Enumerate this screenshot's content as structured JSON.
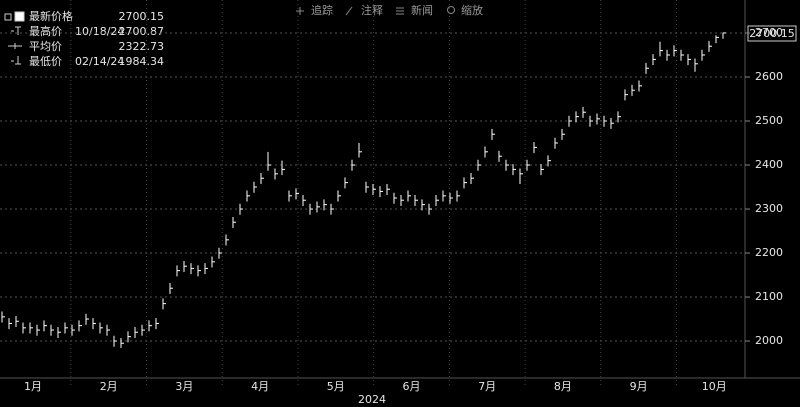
{
  "chart_data": {
    "type": "hlc",
    "color": "#ffffff",
    "toolbar": [
      "追踪",
      "注释",
      "新闻",
      "缩放"
    ],
    "legend": [
      {
        "label": "最新价格",
        "value": 2700.15
      },
      {
        "label": "最高价",
        "date": "10/18/24",
        "value": 2700.87
      },
      {
        "label": "平均价",
        "value": 2322.73
      },
      {
        "label": "最低价",
        "date": "02/14/24",
        "value": 1984.34
      }
    ],
    "last_price": 2700.15,
    "categories": [
      "1月",
      "2月",
      "3月",
      "4月",
      "5月",
      "6月",
      "7月",
      "8月",
      "9月",
      "10月"
    ],
    "x_label": "2024",
    "ylim": [
      1916,
      2775
    ],
    "yticks": [
      2000,
      2100,
      2200,
      2300,
      2400,
      2500,
      2600,
      2700
    ],
    "grid": true,
    "close": [
      2055,
      2040,
      2045,
      2030,
      2030,
      2025,
      2035,
      2025,
      2020,
      2030,
      2025,
      2035,
      2050,
      2040,
      2030,
      2025,
      2000,
      1995,
      2010,
      2020,
      2025,
      2035,
      2040,
      2085,
      2120,
      2160,
      2170,
      2165,
      2160,
      2165,
      2180,
      2200,
      2230,
      2270,
      2300,
      2330,
      2350,
      2370,
      2400,
      2380,
      2390,
      2330,
      2335,
      2320,
      2300,
      2305,
      2310,
      2300,
      2330,
      2360,
      2400,
      2430,
      2350,
      2345,
      2340,
      2345,
      2325,
      2320,
      2330,
      2320,
      2310,
      2300,
      2320,
      2330,
      2325,
      2330,
      2360,
      2370,
      2400,
      2430,
      2470,
      2420,
      2400,
      2390,
      2380,
      2400,
      2440,
      2390,
      2410,
      2450,
      2470,
      2500,
      2510,
      2520,
      2500,
      2505,
      2500,
      2495,
      2510,
      2560,
      2570,
      2580,
      2620,
      2640,
      2660,
      2650,
      2660,
      2650,
      2640,
      2630,
      2650,
      2670,
      2690,
      2700.15
    ],
    "high": [
      2067,
      2052,
      2057,
      2042,
      2042,
      2037,
      2047,
      2037,
      2032,
      2042,
      2037,
      2047,
      2062,
      2052,
      2042,
      2037,
      2012,
      2007,
      2022,
      2032,
      2037,
      2047,
      2052,
      2097,
      2132,
      2172,
      2182,
      2177,
      2172,
      2177,
      2192,
      2212,
      2242,
      2282,
      2312,
      2342,
      2362,
      2382,
      2430,
      2392,
      2410,
      2342,
      2347,
      2332,
      2312,
      2317,
      2322,
      2312,
      2342,
      2372,
      2412,
      2450,
      2362,
      2357,
      2352,
      2357,
      2337,
      2332,
      2342,
      2332,
      2322,
      2312,
      2332,
      2342,
      2337,
      2342,
      2372,
      2382,
      2412,
      2442,
      2482,
      2432,
      2412,
      2402,
      2392,
      2412,
      2452,
      2402,
      2422,
      2462,
      2482,
      2512,
      2522,
      2532,
      2512,
      2517,
      2512,
      2507,
      2522,
      2572,
      2582,
      2592,
      2632,
      2652,
      2680,
      2662,
      2672,
      2662,
      2652,
      2642,
      2662,
      2682,
      2695,
      2700.87
    ],
    "low": [
      2042,
      2027,
      2032,
      2017,
      2017,
      2012,
      2022,
      2012,
      2007,
      2017,
      2012,
      2022,
      2037,
      2027,
      2017,
      2012,
      1987,
      1984.34,
      1997,
      2007,
      2012,
      2022,
      2027,
      2072,
      2107,
      2147,
      2157,
      2152,
      2147,
      2152,
      2167,
      2187,
      2217,
      2257,
      2287,
      2317,
      2337,
      2357,
      2387,
      2367,
      2377,
      2317,
      2322,
      2307,
      2287,
      2292,
      2297,
      2287,
      2317,
      2347,
      2387,
      2417,
      2337,
      2332,
      2327,
      2332,
      2312,
      2307,
      2317,
      2307,
      2297,
      2287,
      2307,
      2317,
      2312,
      2317,
      2347,
      2357,
      2387,
      2417,
      2457,
      2407,
      2387,
      2377,
      2357,
      2387,
      2427,
      2377,
      2397,
      2437,
      2457,
      2487,
      2497,
      2507,
      2487,
      2492,
      2487,
      2482,
      2497,
      2547,
      2557,
      2567,
      2607,
      2627,
      2647,
      2637,
      2647,
      2637,
      2627,
      2612,
      2637,
      2657,
      2677,
      2687
    ]
  }
}
